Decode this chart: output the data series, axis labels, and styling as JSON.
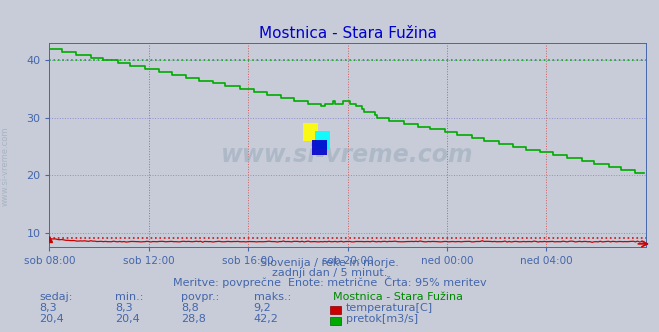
{
  "title": "Mostnica - Stara Fužina",
  "title_color": "#0000cc",
  "bg_color": "#c8ccd8",
  "plot_bg_color": "#c8ccd8",
  "x_tick_labels": [
    "sob 08:00",
    "sob 12:00",
    "sob 16:00",
    "sob 20:00",
    "ned 00:00",
    "ned 04:00"
  ],
  "x_tick_positions": [
    0,
    48,
    96,
    144,
    192,
    240
  ],
  "y_ticks": [
    10,
    20,
    30,
    40
  ],
  "ylim": [
    7.5,
    43
  ],
  "xlim": [
    0,
    288
  ],
  "temp_color": "#cc0000",
  "flow_color": "#00aa00",
  "temp_current": 8.3,
  "temp_min": 8.3,
  "temp_avg": 8.8,
  "temp_max": 9.2,
  "flow_current": 20.4,
  "flow_min": 20.4,
  "flow_avg": 28.8,
  "flow_max": 42.2,
  "temp_dashed_y": 9.2,
  "flow_dashed_y": 40.0,
  "subtitle1": "Slovenija / reke in morje.",
  "subtitle2": "zadnji dan / 5 minut.",
  "subtitle3": "Meritve: povprečne  Enote: metrične  Črta: 95% meritev",
  "legend_title": "Mostnica - Stara Fužina",
  "legend_temp": "temperatura[C]",
  "legend_flow": "pretok[m3/s]",
  "label_sedaj": "sedaj:",
  "label_min": "min.:",
  "label_povpr": "povpr.:",
  "label_maks": "maks.:",
  "text_color": "#4466aa",
  "grid_vcolor": "#cc4444",
  "grid_hcolor": "#8888cc",
  "watermark_color": "#9aaabb"
}
